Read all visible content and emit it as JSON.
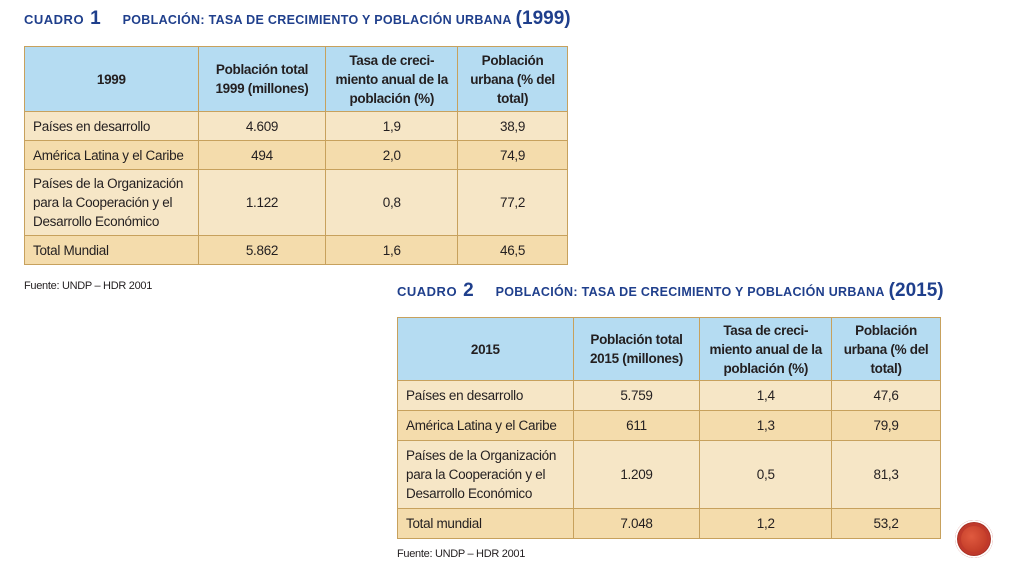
{
  "cuadro1": {
    "label": "CUADRO",
    "number": "1",
    "description": "POBLACIÓN: TASA DE CRECIMIENTO Y POBLACIÓN URBANA",
    "year": "(1999)",
    "headers": [
      "1999",
      "Población total 1999 (millones)",
      "Tasa de creci-miento anual de la población (%)",
      "Población urbana (% del total)"
    ],
    "rows": [
      {
        "label": "Países en desarrollo",
        "total": "4.609",
        "tasa": "1,9",
        "urbana": "38,9"
      },
      {
        "label": "América Latina y el Caribe",
        "total": "494",
        "tasa": "2,0",
        "urbana": "74,9"
      },
      {
        "label": "Países de la Organización para la Cooperación y el Desarrollo Económico",
        "total": "1.122",
        "tasa": "0,8",
        "urbana": "77,2"
      },
      {
        "label": "Total Mundial",
        "total": "5.862",
        "tasa": "1,6",
        "urbana": "46,5"
      }
    ],
    "source": "Fuente: UNDP – HDR 2001"
  },
  "cuadro2": {
    "label": "CUADRO",
    "number": "2",
    "description": "POBLACIÓN: TASA DE CRECIMIENTO Y POBLACIÓN URBANA",
    "year": "(2015)",
    "headers": [
      "2015",
      "Población total 2015 (millones)",
      "Tasa de creci-miento anual de la población (%)",
      "Población urbana (% del total)"
    ],
    "rows": [
      {
        "label": "Países en desarrollo",
        "total": "5.759",
        "tasa": "1,4",
        "urbana": "47,6"
      },
      {
        "label": "América Latina y el Caribe",
        "total": "611",
        "tasa": "1,3",
        "urbana": "79,9"
      },
      {
        "label": "Países de la Organización para la Cooperación y el Desarrollo Económico",
        "total": "1.209",
        "tasa": "0,5",
        "urbana": "81,3"
      },
      {
        "label": "Total mundial",
        "total": "7.048",
        "tasa": "1,2",
        "urbana": "53,2"
      }
    ],
    "source": "Fuente: UNDP – HDR 2001"
  },
  "colors": {
    "title": "#1f3f8c",
    "header_bg": "#b5dcf2",
    "cell_bg": "#f6e6c6",
    "cell_alt_bg": "#f4dcac",
    "border": "#c7a15d",
    "nav_button": "#c0392b"
  }
}
